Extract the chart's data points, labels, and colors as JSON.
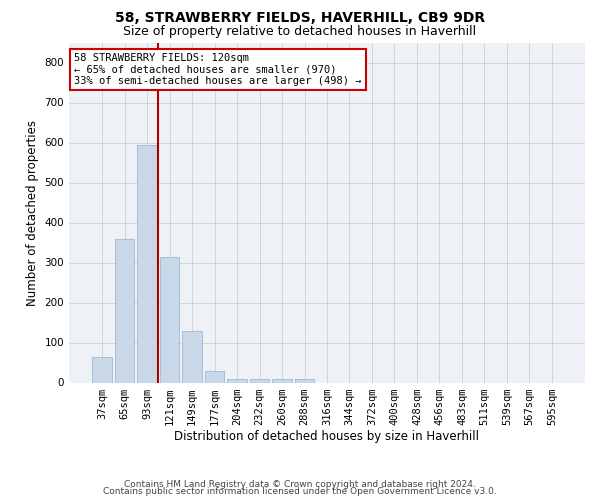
{
  "title": "58, STRAWBERRY FIELDS, HAVERHILL, CB9 9DR",
  "subtitle": "Size of property relative to detached houses in Haverhill",
  "xlabel": "Distribution of detached houses by size in Haverhill",
  "ylabel": "Number of detached properties",
  "categories": [
    "37sqm",
    "65sqm",
    "93sqm",
    "121sqm",
    "149sqm",
    "177sqm",
    "204sqm",
    "232sqm",
    "260sqm",
    "288sqm",
    "316sqm",
    "344sqm",
    "372sqm",
    "400sqm",
    "428sqm",
    "456sqm",
    "483sqm",
    "511sqm",
    "539sqm",
    "567sqm",
    "595sqm"
  ],
  "values": [
    65,
    360,
    595,
    315,
    128,
    28,
    8,
    10,
    8,
    8,
    0,
    0,
    0,
    0,
    0,
    0,
    0,
    0,
    0,
    0,
    0
  ],
  "bar_color": "#c8d8e8",
  "bar_edgecolor": "#a0b8d0",
  "marker_bin_index": 3,
  "marker_color": "#aa0000",
  "annotation_line1": "58 STRAWBERRY FIELDS: 120sqm",
  "annotation_line2": "← 65% of detached houses are smaller (970)",
  "annotation_line3": "33% of semi-detached houses are larger (498) →",
  "annotation_box_color": "#ffffff",
  "annotation_box_edgecolor": "#cc0000",
  "ylim": [
    0,
    850
  ],
  "yticks": [
    0,
    100,
    200,
    300,
    400,
    500,
    600,
    700,
    800
  ],
  "background_color": "#eef2f7",
  "grid_color": "#c8c8c8",
  "footer_line1": "Contains HM Land Registry data © Crown copyright and database right 2024.",
  "footer_line2": "Contains public sector information licensed under the Open Government Licence v3.0.",
  "title_fontsize": 10,
  "subtitle_fontsize": 9,
  "axis_label_fontsize": 8.5,
  "tick_fontsize": 7.5,
  "annotation_fontsize": 7.5,
  "footer_fontsize": 6.5
}
